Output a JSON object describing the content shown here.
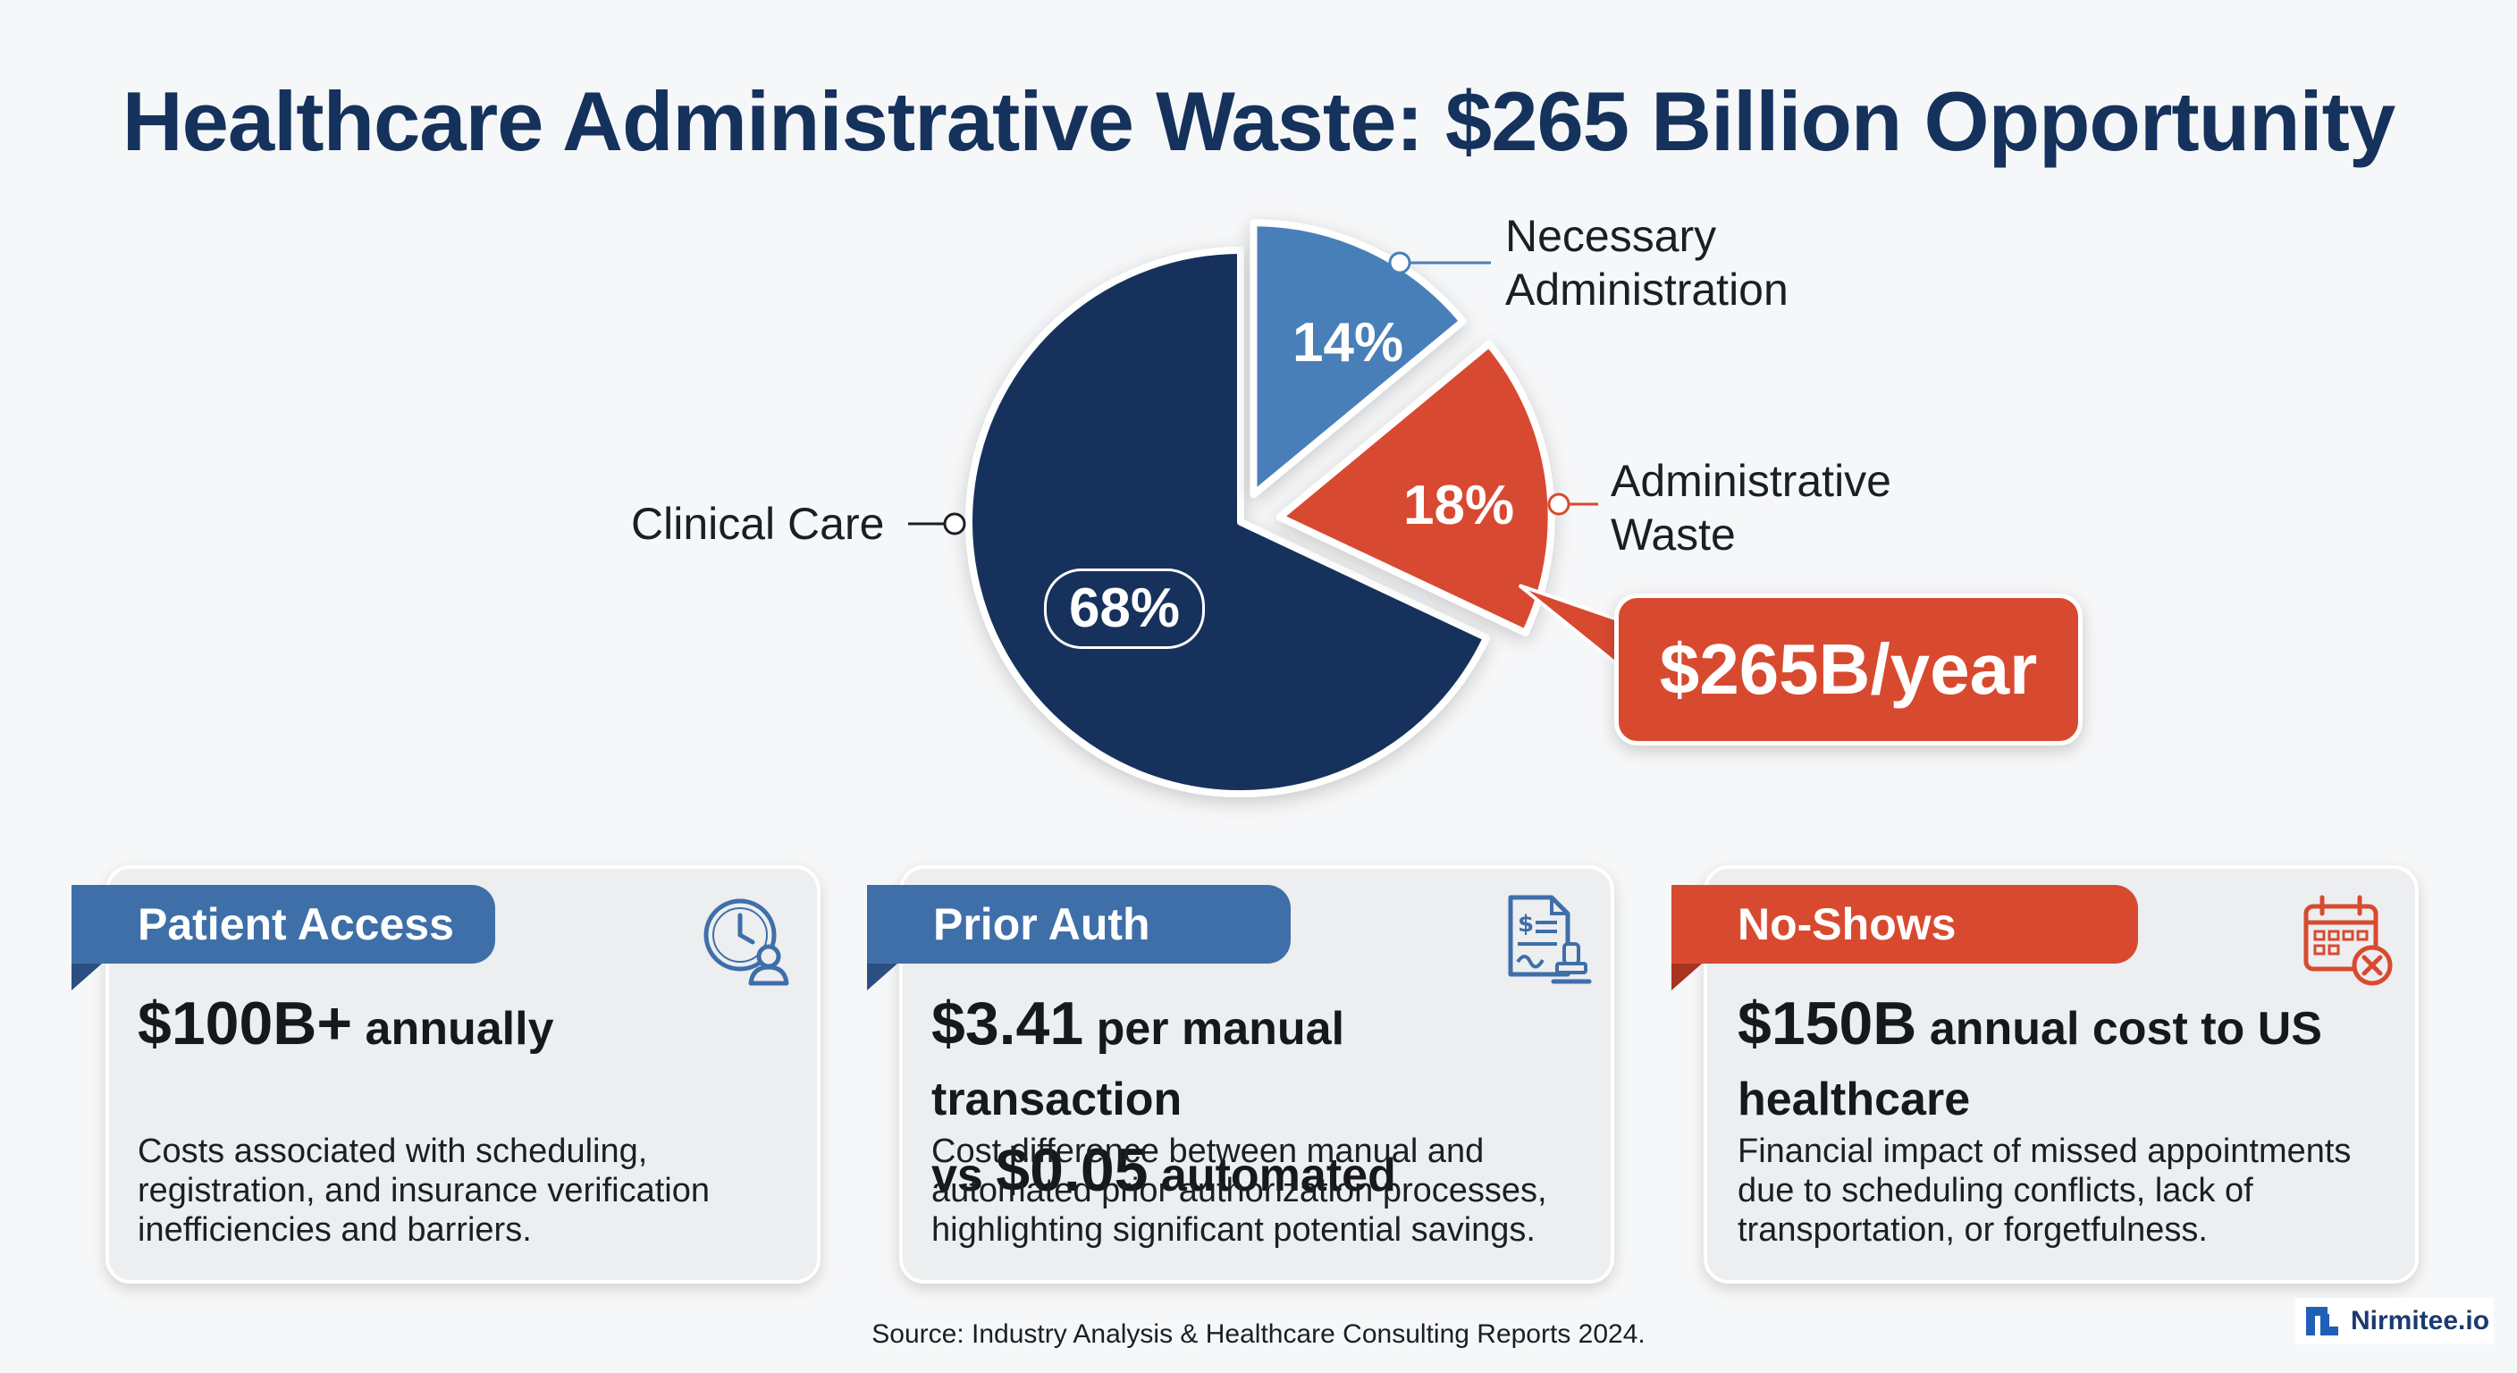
{
  "page": {
    "title": "Healthcare Administrative Waste: $265 Billion Opportunity"
  },
  "chart_data": {
    "type": "pie",
    "title": "Healthcare Administrative Waste: $265 Billion Opportunity",
    "slices": [
      {
        "label": "Clinical Care",
        "value": 68,
        "value_label": "68%",
        "color": "#15325c"
      },
      {
        "label": "Necessary Administration",
        "value": 14,
        "value_label": "14%",
        "color": "#4a7fb8"
      },
      {
        "label": "Administrative Waste",
        "value": 18,
        "value_label": "18%",
        "color": "#d84a30"
      }
    ],
    "labels": {
      "clinical": "Clinical Care",
      "necessary_line1": "Necessary",
      "necessary_line2": "Administration",
      "waste_line1": "Administrative",
      "waste_line2": "Waste"
    },
    "callout": "$265B/year"
  },
  "cards": [
    {
      "tag": "Patient Access",
      "headline_big": "$100B+",
      "headline_small": " annually",
      "description": "Costs associated with scheduling, registration, and insurance verification inefficiencies and barriers.",
      "icon": "clock-person-icon",
      "color": "#3f6fa8"
    },
    {
      "tag": "Prior Auth",
      "headline_big1": "$3.41",
      "headline_small1": " per manual transaction",
      "headline_small2": "vs ",
      "headline_big2": "$0.05",
      "headline_small3": " automated",
      "description": "Cost difference between manual and automated prior authorization processes, highlighting significant potential savings.",
      "icon": "document-stamp-icon",
      "color": "#3f6fa8"
    },
    {
      "tag": "No-Shows",
      "headline_big": "$150B",
      "headline_small": " annual cost to US healthcare",
      "description": "Financial impact of missed appointments due to scheduling conflicts, lack of transportation, or forgetfulness.",
      "icon": "calendar-cancel-icon",
      "color": "#d84a30"
    }
  ],
  "footer": {
    "source": "Source: Industry Analysis & Healthcare Consulting Reports 2024.",
    "brand": "Nirmitee.io"
  }
}
